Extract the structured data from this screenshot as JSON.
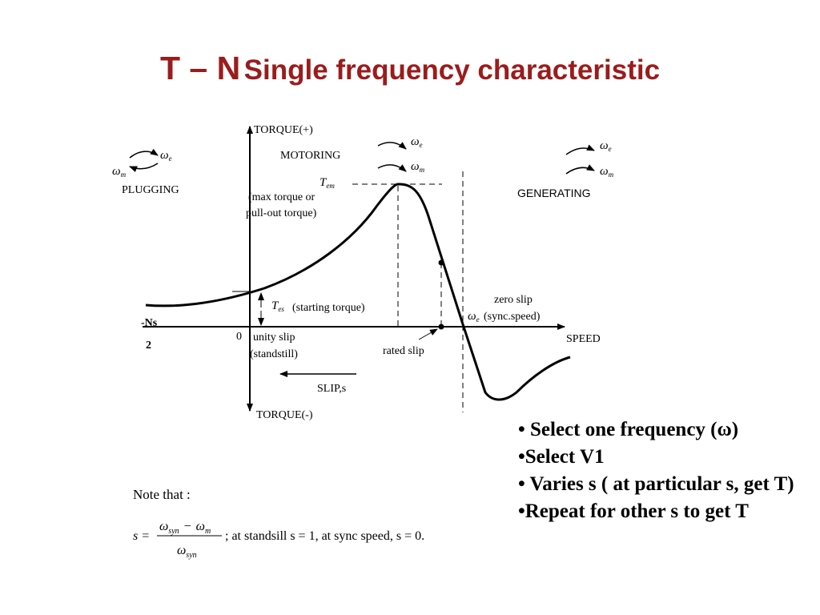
{
  "title": {
    "main": "T – N",
    "sub": "Single frequency characteristic"
  },
  "axes": {
    "y_pos": "TORQUE(+)",
    "y_neg": "TORQUE(-)",
    "x": "SPEED",
    "origin": "0",
    "neg_sync": "-Ns",
    "neg_sync_2": "2"
  },
  "regions": {
    "motoring": "MOTORING",
    "plugging": "PLUGGING",
    "generating": "GENERATING"
  },
  "symbols": {
    "omega": "ω",
    "sub_e": "e",
    "sub_m": "m",
    "T": "T",
    "sub_em": "em",
    "sub_es": "es"
  },
  "labels": {
    "max_torque_1": "(max torque or",
    "max_torque_2": "pull-out torque)",
    "starting_torque": "(starting torque)",
    "zero_slip": "zero slip",
    "sync_speed": "(sync.speed)",
    "unity_slip": "unity slip",
    "standstill": "(standstill)",
    "rated_slip": "rated slip",
    "slip": "SLIP,s"
  },
  "bullets": [
    "• Select one frequency (ω)",
    "•Select V1",
    "• Varies s ( at particular s, get T)",
    "•Repeat for other s to get T"
  ],
  "note": {
    "label": "Note that :",
    "s_eq": "s =",
    "num_omega1": "ω",
    "num_sub1": "syn",
    "num_minus": "−",
    "num_omega2": "ω",
    "num_sub2": "m",
    "den_omega": "ω",
    "den_sub": "syn",
    "tail": ";  at standsill s = 1, at sync speed,  s = 0."
  },
  "colors": {
    "title": "#9b1c1c",
    "line": "#000000"
  }
}
